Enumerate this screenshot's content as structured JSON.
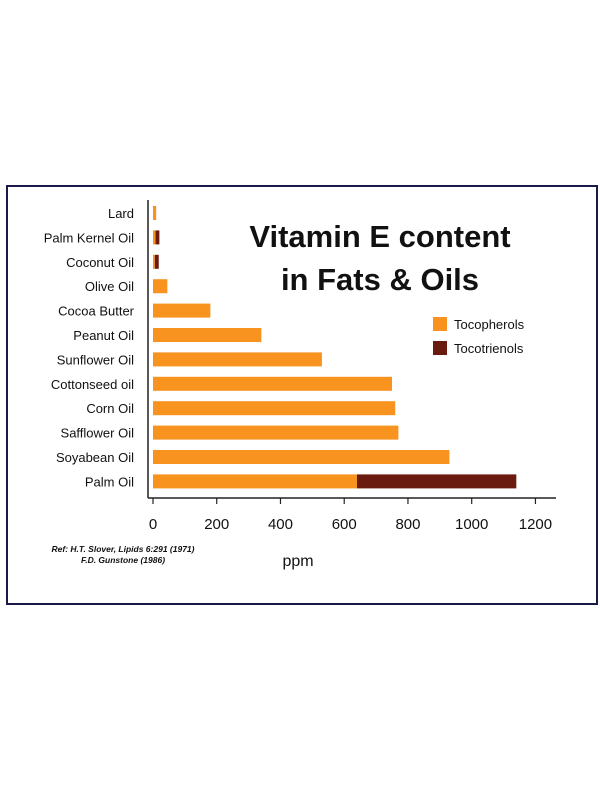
{
  "chart_data": {
    "type": "bar",
    "orientation": "horizontal",
    "stacked": true,
    "title_line1": "Vitamin E content",
    "title_line2": "in Fats & Oils",
    "xlabel": "ppm",
    "ylabel": "",
    "xlim": [
      0,
      1250
    ],
    "xticks": [
      "0",
      "200",
      "400",
      "600",
      "800",
      "1000",
      "1200"
    ],
    "xtick_values": [
      0,
      200,
      400,
      600,
      800,
      1000,
      1200
    ],
    "legend_position": "top-right",
    "categories": [
      "Lard",
      "Palm Kernel Oil",
      "Coconut Oil",
      "Olive Oil",
      "Cocoa Butter",
      "Peanut Oil",
      "Sunflower Oil",
      "Cottonseed oil",
      "Corn Oil",
      "Safflower Oil",
      "Soyabean Oil",
      "Palm Oil"
    ],
    "series": [
      {
        "name": "Tocopherols",
        "color": "#f7931e",
        "values": [
          10,
          8,
          6,
          45,
          180,
          340,
          530,
          750,
          760,
          770,
          930,
          640
        ]
      },
      {
        "name": "Tocotrienols",
        "color": "#6b1a10",
        "values": [
          0,
          12,
          12,
          0,
          0,
          0,
          0,
          0,
          0,
          0,
          0,
          500
        ]
      }
    ],
    "reference_line1": "Ref: H.T. Slover, Lipids 6:291 (1971)",
    "reference_line2": "F.D. Gunstone (1986)"
  },
  "colors": {
    "frame": "#1a1a4a",
    "axis": "#222222",
    "text": "#111111"
  }
}
